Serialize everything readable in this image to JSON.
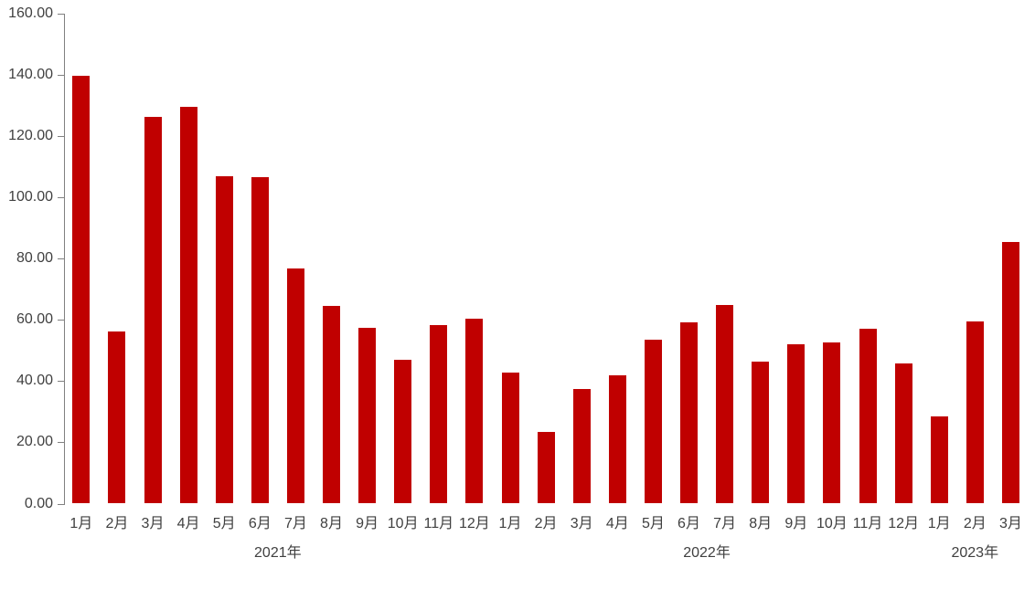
{
  "chart_data": {
    "type": "bar",
    "title": "",
    "xlabel": "",
    "ylabel": "",
    "ylim": [
      0,
      160
    ],
    "y_tick_interval": 20,
    "y_tick_labels": [
      "0.00",
      "20.00",
      "40.00",
      "60.00",
      "80.00",
      "100.00",
      "120.00",
      "140.00",
      "160.00"
    ],
    "grid": "off",
    "legend": "none",
    "bar_color": "#c00000",
    "axis_color": "#808080",
    "text_color": "#404040",
    "groups": [
      {
        "year": "2021年",
        "months": [
          "1月",
          "2月",
          "3月",
          "4月",
          "5月",
          "6月",
          "7月",
          "8月",
          "9月",
          "10月",
          "11月",
          "12月"
        ],
        "values": [
          139.8,
          56.1,
          126.2,
          129.6,
          107.0,
          106.6,
          76.7,
          64.6,
          57.3,
          46.9,
          58.4,
          60.3
        ]
      },
      {
        "year": "2022年",
        "months": [
          "1月",
          "2月",
          "3月",
          "4月",
          "5月",
          "6月",
          "7月",
          "8月",
          "9月",
          "10月",
          "11月",
          "12月"
        ],
        "values": [
          42.7,
          23.5,
          37.3,
          42.0,
          53.5,
          59.3,
          64.9,
          46.5,
          52.0,
          52.7,
          57.2,
          45.9
        ]
      },
      {
        "year": "2023年",
        "months": [
          "1月",
          "2月",
          "3月"
        ],
        "values": [
          28.6,
          59.5,
          85.5
        ]
      }
    ]
  }
}
